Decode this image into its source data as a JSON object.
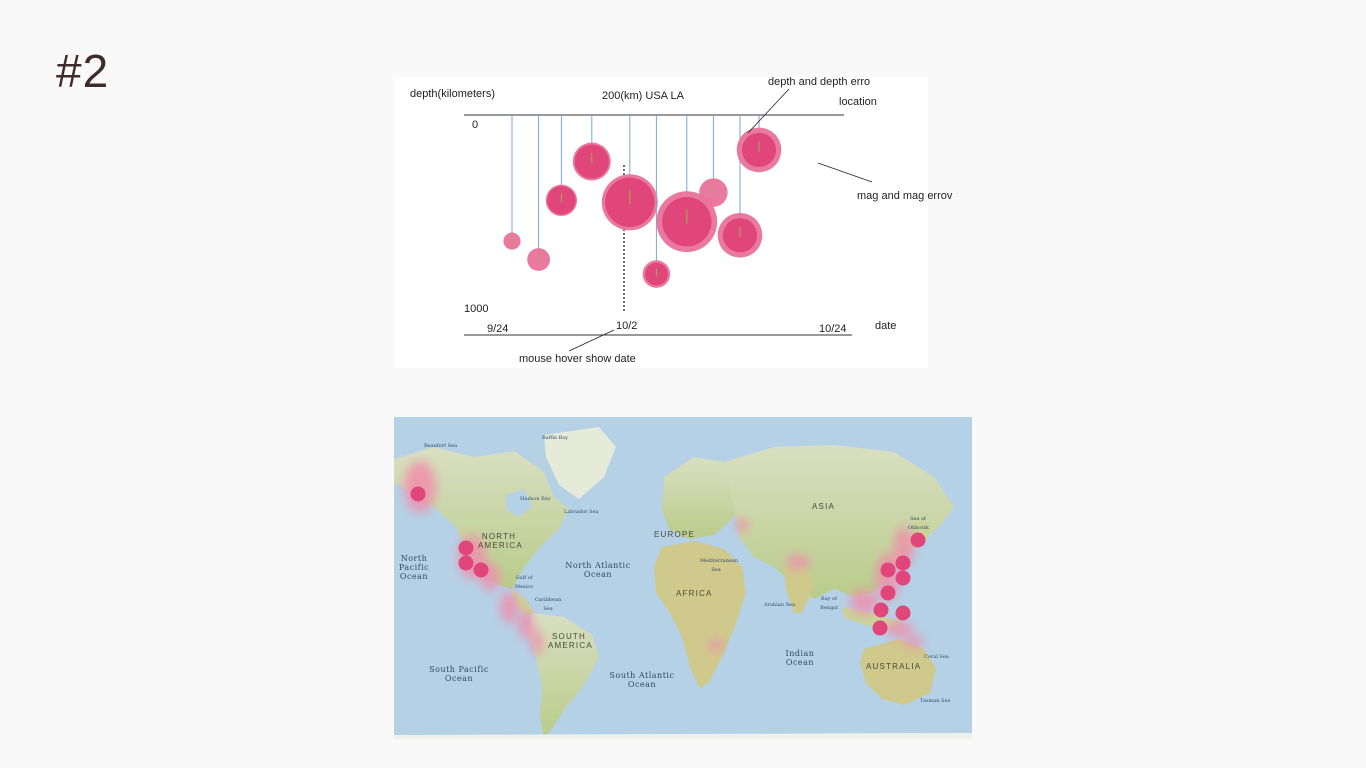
{
  "slide": {
    "title": "#2"
  },
  "sketch": {
    "y_axis_label": "depth(kilometers)",
    "top_label": "200(km) USA LA",
    "location_label": "location",
    "depth_top": "0",
    "depth_bottom": "1000",
    "date_start": "9/24",
    "date_hover": "10/2",
    "date_end": "10/24",
    "date_label": "date",
    "annotation_depth": "depth and depth erro",
    "annotation_mag": "mag and mag errov",
    "annotation_hover": "mouse hover show date",
    "accent_outer": "#e8729a",
    "accent_inner": "#e0467a",
    "stem_color": "#7aa6d8",
    "quakes": [
      {
        "date_frac": 0.1,
        "depth": 650,
        "mag": 0.9,
        "err": 0.0
      },
      {
        "date_frac": 0.17,
        "depth": 745,
        "mag": 1.2,
        "err": 0.0
      },
      {
        "date_frac": 0.23,
        "depth": 440,
        "mag": 1.5,
        "err": 0.15
      },
      {
        "date_frac": 0.31,
        "depth": 240,
        "mag": 1.8,
        "err": 0.2
      },
      {
        "date_frac": 0.41,
        "depth": 450,
        "mag": 2.6,
        "err": 0.35
      },
      {
        "date_frac": 0.48,
        "depth": 820,
        "mag": 1.2,
        "err": 0.25
      },
      {
        "date_frac": 0.56,
        "depth": 550,
        "mag": 2.6,
        "err": 0.6
      },
      {
        "date_frac": 0.63,
        "depth": 400,
        "mag": 1.5,
        "err": 0.0
      },
      {
        "date_frac": 0.7,
        "depth": 620,
        "mag": 1.8,
        "err": 0.55
      },
      {
        "date_frac": 0.75,
        "depth": 180,
        "mag": 1.8,
        "err": 0.55
      }
    ]
  },
  "map": {
    "oceans": [
      "Beaufort Sea",
      "Baffin Bay",
      "Hudson Bay",
      "Labrador Sea",
      "North Pacific Ocean",
      "North Atlantic Ocean",
      "Gulf of Mexico",
      "Caribbean Sea",
      "Mediterranean Sea",
      "Arabian Sea",
      "Bay of Bengal",
      "Indian Ocean",
      "South Pacific Ocean",
      "South Atlantic Ocean",
      "Sea of Okhotsk",
      "Coral Sea",
      "Tasman Sea"
    ],
    "continents": [
      "NORTH AMERICA",
      "SOUTH AMERICA",
      "EUROPE",
      "AFRICA",
      "ASIA",
      "AUSTRALIA"
    ],
    "quake_color": "#e0467a",
    "halo_color": "#f08fab"
  }
}
